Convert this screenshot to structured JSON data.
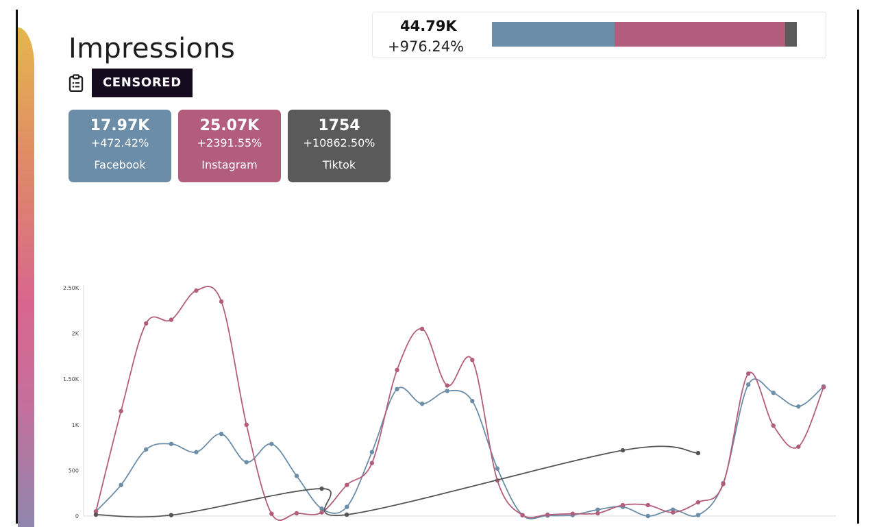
{
  "page": {
    "title": "Impressions",
    "redacted_label": "CENSORED",
    "subtitle_icon": "clipboard-icon"
  },
  "summary": {
    "total": "44.79K",
    "change": "+976.24%",
    "share_bar": [
      {
        "name": "Facebook",
        "value": 17970,
        "color": "#6b8da7"
      },
      {
        "name": "Instagram",
        "value": 25070,
        "color": "#b35d7d"
      },
      {
        "name": "Tiktok",
        "value": 1754,
        "color": "#5a5a5a"
      }
    ]
  },
  "cards": [
    {
      "value": "17.97K",
      "change": "+472.42%",
      "label": "Facebook",
      "color": "#6b8da7"
    },
    {
      "value": "25.07K",
      "change": "+2391.55%",
      "label": "Instagram",
      "color": "#b35d7d"
    },
    {
      "value": "1754",
      "change": "+10862.50%",
      "label": "Tiktok",
      "color": "#5a5a5a"
    }
  ],
  "chart_data": {
    "type": "line",
    "title": "",
    "xlabel": "",
    "ylabel": "",
    "ylim": [
      0,
      2500
    ],
    "yticks": [
      0,
      500,
      1000,
      1500,
      2000,
      2500
    ],
    "ytick_labels": [
      "0",
      "500",
      "1K",
      "1.50K",
      "2K",
      "2.50K"
    ],
    "grid": false,
    "legend": "none",
    "x_count": 30,
    "series": [
      {
        "color": "#6b8da7",
        "x": [
          0,
          1,
          2,
          3,
          4,
          5,
          6,
          7,
          8,
          9,
          10,
          11,
          12,
          13,
          14,
          15,
          16,
          17,
          18,
          19,
          20,
          21,
          22,
          23,
          24,
          25,
          26,
          27,
          28,
          29
        ],
        "values": [
          50,
          340,
          730,
          790,
          700,
          900,
          590,
          790,
          440,
          80,
          100,
          700,
          1390,
          1230,
          1370,
          1260,
          520,
          10,
          5,
          10,
          70,
          100,
          0,
          70,
          10,
          360,
          1440,
          1350,
          1200,
          1420
        ]
      },
      {
        "color": "#b35d7d",
        "x": [
          0,
          1,
          2,
          3,
          4,
          5,
          6,
          7,
          8,
          9,
          10,
          11,
          12,
          13,
          14,
          15,
          16,
          17,
          18,
          19,
          20,
          21,
          22,
          23,
          24,
          25,
          26,
          27,
          28,
          29
        ],
        "values": [
          50,
          1150,
          2110,
          2150,
          2470,
          2350,
          1000,
          25,
          30,
          40,
          340,
          580,
          1600,
          2050,
          1430,
          1710,
          390,
          10,
          15,
          25,
          30,
          120,
          120,
          40,
          150,
          350,
          1560,
          990,
          760,
          1410
        ]
      },
      {
        "color": "#555555",
        "x": [
          0,
          3,
          9,
          10,
          21,
          24
        ],
        "values": [
          15,
          10,
          300,
          15,
          720,
          690
        ]
      }
    ]
  }
}
